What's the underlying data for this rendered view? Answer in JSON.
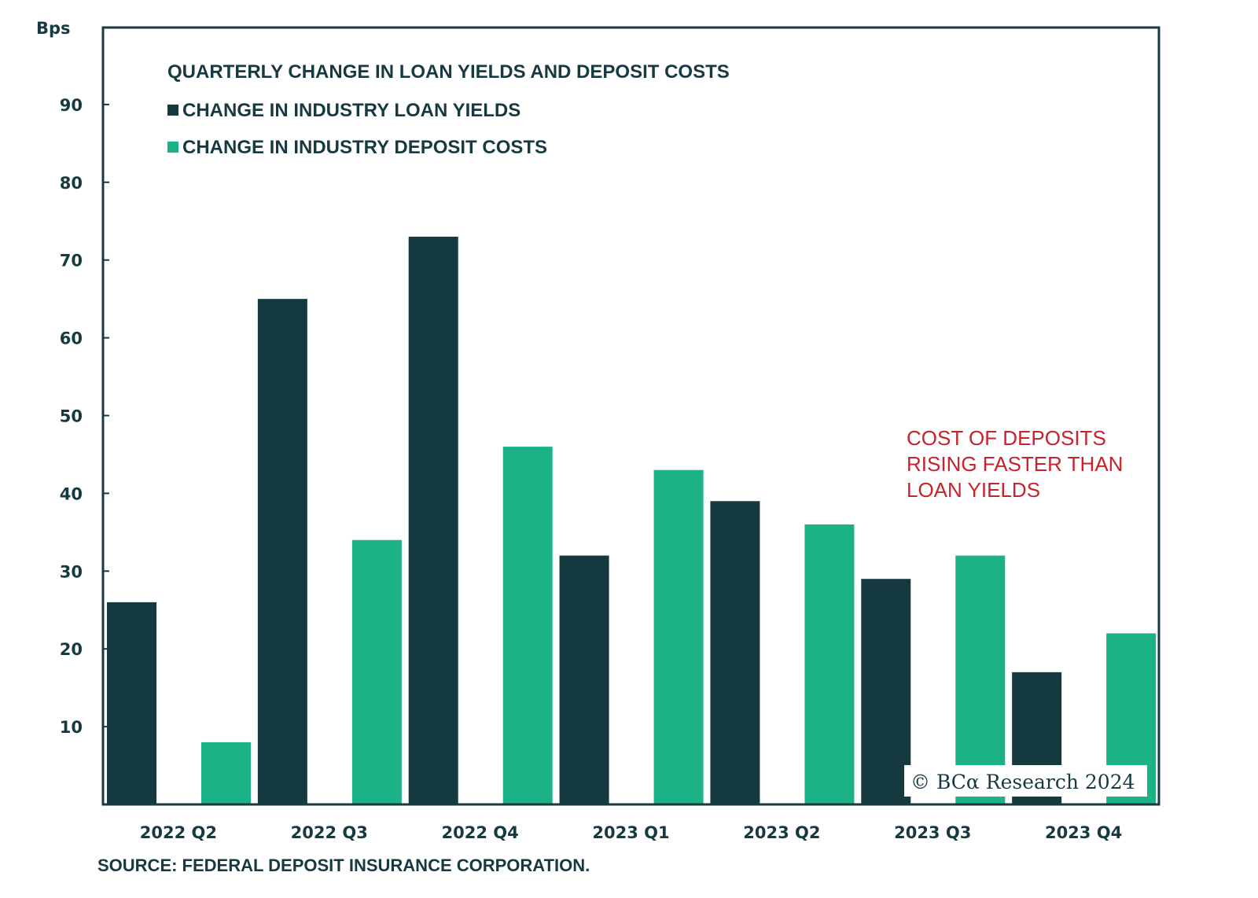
{
  "chart_data": {
    "type": "bar",
    "title": "QUARTERLY CHANGE IN LOAN YIELDS AND DEPOSIT COSTS",
    "xlabel": "",
    "ylabel": "Bps",
    "ylim": [
      0,
      100
    ],
    "yticks": [
      10,
      20,
      30,
      40,
      50,
      60,
      70,
      80,
      90
    ],
    "grid": false,
    "legend_position": "top-left",
    "categories": [
      "2022 Q2",
      "2022 Q3",
      "2022 Q4",
      "2023 Q1",
      "2023 Q2",
      "2023 Q3",
      "2023 Q4"
    ],
    "series": [
      {
        "name": "CHANGE IN INDUSTRY LOAN YIELDS",
        "color": "#143a40",
        "values": [
          26,
          65,
          73,
          32,
          39,
          29,
          17
        ]
      },
      {
        "name": "CHANGE IN INDUSTRY DEPOSIT COSTS",
        "color": "#1bb386",
        "values": [
          8,
          34,
          46,
          43,
          36,
          32,
          22
        ]
      }
    ],
    "annotations": [
      {
        "lines": [
          "COST OF DEPOSITS",
          "RISING FASTER THAN",
          "LOAN YIELDS"
        ],
        "color": "#c8232c"
      }
    ],
    "source": "SOURCE: FEDERAL DEPOSIT INSURANCE CORPORATION.",
    "watermark": "© BCα Research 2024"
  },
  "colors": {
    "axis": "#173a40",
    "text": "#173a40",
    "accent_red": "#c8232c"
  }
}
